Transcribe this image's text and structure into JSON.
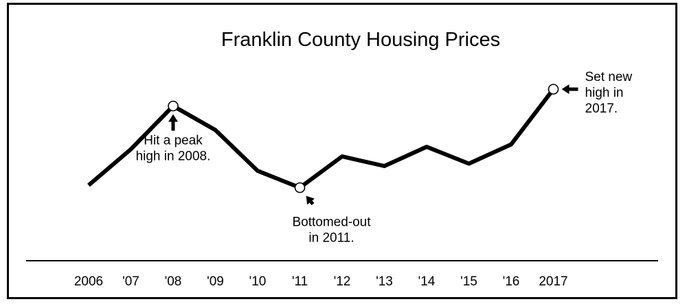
{
  "chart_data": {
    "type": "line",
    "title": "Franklin County Housing Prices",
    "xlabel": "",
    "ylabel": "",
    "categories": [
      "2006",
      "'07",
      "'08",
      "'09",
      "'10",
      "'11",
      "'12",
      "'13",
      "'14",
      "'15",
      "'16",
      "2017"
    ],
    "values": [
      3.0,
      4.5,
      6.3,
      5.3,
      3.6,
      2.9,
      4.2,
      3.8,
      4.6,
      3.9,
      4.7,
      7.0
    ],
    "ylim": [
      0,
      8
    ],
    "grid": false,
    "markers": [
      2,
      5,
      11
    ],
    "line_color": "#000000",
    "annotations": [
      {
        "lines": [
          "Hit a peak",
          "high in 2008."
        ],
        "point": 2,
        "arrow": "up"
      },
      {
        "lines": [
          "Bottomed-out",
          "in 2011."
        ],
        "point": 5,
        "arrow": "up-left"
      },
      {
        "lines": [
          "Set new",
          "high in",
          "2017."
        ],
        "point": 11,
        "arrow": "left"
      }
    ]
  }
}
